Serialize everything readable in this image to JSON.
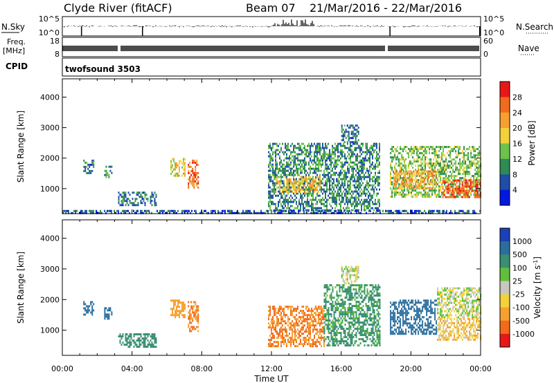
{
  "header": {
    "station": "Clyde River (fitACF)",
    "beam": "Beam 07",
    "dates": "21/Mar/2016 - 22/Mar/2016"
  },
  "params": {
    "nsky_label": "N.Sky",
    "nsky_ticks": [
      "10^5",
      "10^0"
    ],
    "nsearch_label": "N.Search",
    "nsearch_ticks": [
      "10^5",
      "10^0"
    ],
    "freq_label_1": "Freq.",
    "freq_label_2": "[MHz]",
    "freq_ticks": [
      "18",
      "8"
    ],
    "nave_label": "Nave",
    "nave_ticks": [
      "60",
      "0"
    ],
    "cpid_label": "CPID",
    "cpid_value": "twofsound 3503"
  },
  "colors": {
    "power_scale": [
      "#0018e0",
      "#1f4ea8",
      "#2f8a55",
      "#6cc24a",
      "#f2d23a",
      "#f6a030",
      "#f26a1a",
      "#e81818"
    ],
    "velocity_scale": [
      "#1c40b8",
      "#2a6e9e",
      "#3a8f70",
      "#62bf3c",
      "#c8c8c0",
      "#f2d23a",
      "#f6a030",
      "#f26a1a",
      "#e81818"
    ],
    "gray_ground": "#c8c8c0"
  },
  "chart_data": [
    {
      "type": "heatmap",
      "title": "Power",
      "ylabel": "Slant Range [km]",
      "xlabel": "Time UT",
      "x_ticks": [
        "00:00",
        "04:00",
        "08:00",
        "12:00",
        "16:00",
        "20:00",
        "00:00"
      ],
      "y_ticks": [
        "1000",
        "2000",
        "3000",
        "4000"
      ],
      "xlim_hours": [
        0,
        24
      ],
      "ylim_km": [
        180,
        4600
      ],
      "colorbar_label": "Power [dB]",
      "colorbar_ticks": [
        "28",
        "24",
        "20",
        "16",
        "12",
        "8",
        "4"
      ],
      "colorbar_range": [
        0,
        32
      ],
      "regions": [
        {
          "t0": 1.2,
          "t1": 1.8,
          "r0": 1500,
          "r1": 1950,
          "v": 8
        },
        {
          "t0": 2.4,
          "t1": 2.8,
          "r0": 1350,
          "r1": 1750,
          "v": 12
        },
        {
          "t0": 3.2,
          "t1": 5.4,
          "r0": 450,
          "r1": 900,
          "v": 8
        },
        {
          "t0": 6.2,
          "t1": 7.0,
          "r0": 1450,
          "r1": 2000,
          "v": 18
        },
        {
          "t0": 7.2,
          "t1": 7.8,
          "r0": 1000,
          "r1": 1950,
          "v": 26
        },
        {
          "t0": 11.8,
          "t1": 18.2,
          "r0": 300,
          "r1": 2500,
          "v": 10
        },
        {
          "t0": 12.2,
          "t1": 14.8,
          "r0": 900,
          "r1": 1400,
          "v": 20
        },
        {
          "t0": 16.0,
          "t1": 17.0,
          "r0": 2500,
          "r1": 3100,
          "v": 8
        },
        {
          "t0": 18.8,
          "t1": 24.0,
          "r0": 700,
          "r1": 2400,
          "v": 14
        },
        {
          "t0": 19.0,
          "t1": 21.5,
          "r0": 1000,
          "r1": 1600,
          "v": 22
        },
        {
          "t0": 21.8,
          "t1": 24.0,
          "r0": 700,
          "r1": 1300,
          "v": 28
        },
        {
          "t0": 0.0,
          "t1": 24.0,
          "r0": 180,
          "r1": 300,
          "v": 6
        }
      ]
    },
    {
      "type": "heatmap",
      "title": "Velocity",
      "ylabel": "Slant Range [km]",
      "xlabel": "Time UT",
      "x_ticks": [
        "00:00",
        "04:00",
        "08:00",
        "12:00",
        "16:00",
        "20:00",
        "00:00"
      ],
      "y_ticks": [
        "1000",
        "2000",
        "3000",
        "4000"
      ],
      "xlim_hours": [
        0,
        24
      ],
      "ylim_km": [
        180,
        4600
      ],
      "colorbar_label": "Velocity [m s^-1]",
      "colorbar_ticks": [
        "1000",
        "500",
        "100",
        "25",
        "-25",
        "-100",
        "-500",
        "-1000"
      ],
      "regions": [
        {
          "t0": 1.2,
          "t1": 1.8,
          "r0": 1500,
          "r1": 1950,
          "v": 700
        },
        {
          "t0": 2.4,
          "t1": 2.8,
          "r0": 1350,
          "r1": 1750,
          "v": 800
        },
        {
          "t0": 3.2,
          "t1": 5.4,
          "r0": 450,
          "r1": 900,
          "v": 200
        },
        {
          "t0": 6.2,
          "t1": 7.0,
          "r0": 1450,
          "r1": 2000,
          "v": -400
        },
        {
          "t0": 7.2,
          "t1": 7.8,
          "r0": 1000,
          "r1": 1950,
          "v": -500
        },
        {
          "t0": 11.8,
          "t1": 15.0,
          "r0": 500,
          "r1": 1800,
          "v": -500
        },
        {
          "t0": 15.0,
          "t1": 18.2,
          "r0": 500,
          "r1": 2500,
          "v": 150
        },
        {
          "t0": 16.0,
          "t1": 17.0,
          "r0": 2500,
          "r1": 3100,
          "v": 0
        },
        {
          "t0": 18.8,
          "t1": 21.5,
          "r0": 900,
          "r1": 2000,
          "v": 600
        },
        {
          "t0": 21.5,
          "t1": 24.0,
          "r0": 1400,
          "r1": 2400,
          "v": 0
        },
        {
          "t0": 21.5,
          "t1": 24.0,
          "r0": 700,
          "r1": 1400,
          "v": -80
        }
      ]
    }
  ]
}
